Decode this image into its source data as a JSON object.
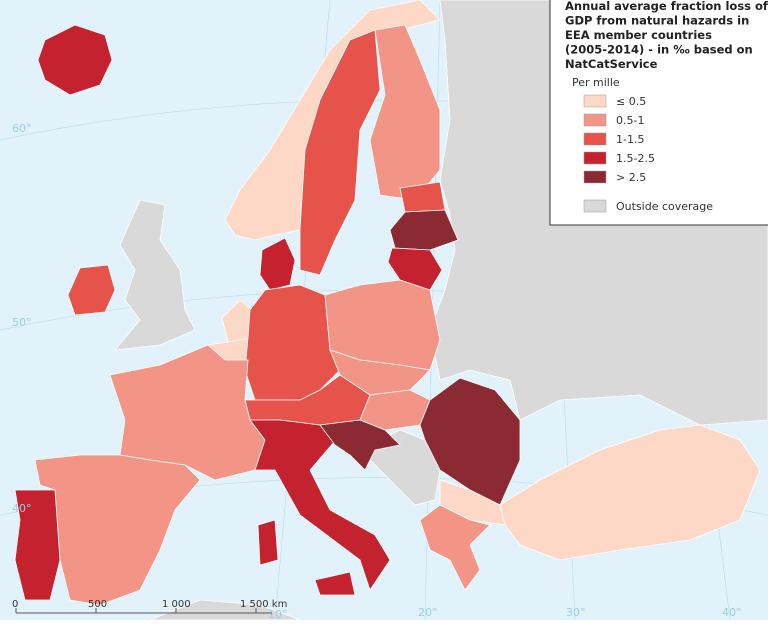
{
  "title_lines": [
    "Annual average fraction loss of",
    "GDP from natural hazards in",
    "EEA member countries",
    "(2005-2014) - in ‰ based on",
    "NatCatService"
  ],
  "legend": {
    "heading": "Per mille",
    "items": [
      {
        "label": "≤ 0.5",
        "color": "#fdd8c7"
      },
      {
        "label": "0.5-1",
        "color": "#f29486"
      },
      {
        "label": "1-1.5",
        "color": "#e6534a"
      },
      {
        "label": "1.5-2.5",
        "color": "#c5222f"
      },
      {
        "label": "> 2.5",
        "color": "#8c2a33"
      },
      {
        "label": "Outside coverage",
        "color": "#d9d9d9"
      }
    ]
  },
  "scale_bar": [
    "0",
    "500",
    "1 000",
    "1 500 km"
  ],
  "graticule_labels": [
    "60°",
    "50°",
    "40°",
    "10°",
    "20°",
    "30°",
    "40°"
  ]
}
